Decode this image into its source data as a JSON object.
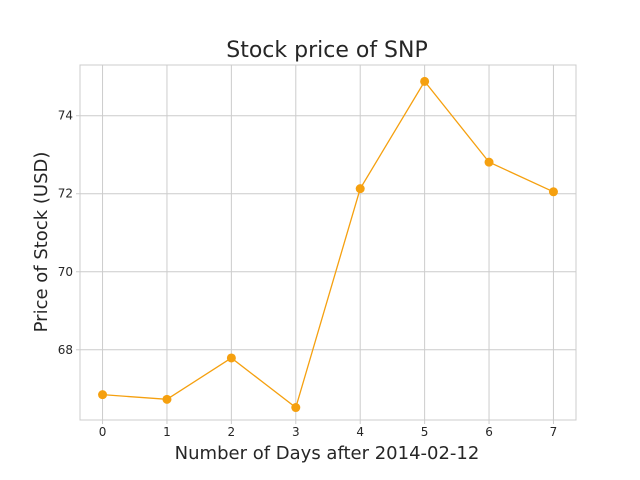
{
  "chart_data": {
    "type": "line",
    "title": "Stock price of SNP",
    "xlabel": "Number of Days after 2014-02-12",
    "ylabel": "Price of Stock (USD)",
    "x": [
      0,
      1,
      2,
      3,
      4,
      5,
      6,
      7
    ],
    "series": [
      {
        "values": [
          66.85,
          66.73,
          67.79,
          66.52,
          72.13,
          74.88,
          72.81,
          72.05
        ],
        "color": "#f5a00f"
      }
    ],
    "x_ticks": [
      "0",
      "1",
      "2",
      "3",
      "4",
      "5",
      "6",
      "7"
    ],
    "y_ticks": [
      "68",
      "70",
      "72",
      "74"
    ],
    "xlim": [
      -0.35,
      7.35
    ],
    "ylim": [
      66.2,
      75.3
    ],
    "grid": true,
    "legend": "none"
  }
}
